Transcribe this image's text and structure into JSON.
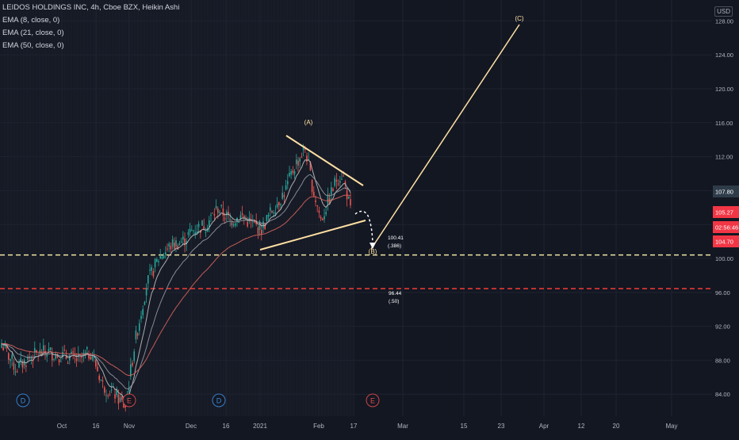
{
  "header": {
    "title": "LEIDOS HOLDINGS INC, 4h, Cboe BZX, Heikin Ashi"
  },
  "indicators": [
    {
      "label": "EMA (8, close, 0)",
      "color": "#c8c8c8"
    },
    {
      "label": "EMA (21, close, 0)",
      "color": "#9a9fa8"
    },
    {
      "label": "EMA (50, close, 0)",
      "color": "#e0675f"
    }
  ],
  "currency": "USD",
  "price_axis": {
    "ticks": [
      "128.00",
      "124.00",
      "120.00",
      "116.00",
      "112.00",
      "108.00",
      "104.00",
      "100.00",
      "96.00",
      "92.00",
      "88.00",
      "84.00"
    ]
  },
  "time_axis": {
    "ticks": [
      "Oct",
      "16",
      "Nov",
      "Dec",
      "16",
      "2021",
      "Feb",
      "17",
      "Mar",
      "15",
      "23",
      "Apr",
      "12",
      "20",
      "May"
    ]
  },
  "price_tags": [
    {
      "value": "107.80",
      "bg": "#2e3c4a",
      "fg": "#ffffff"
    },
    {
      "value": "105.27",
      "bg": "#f23645",
      "fg": "#ffffff"
    },
    {
      "value": "02:56:46",
      "bg": "#f23645",
      "fg": "#ffffff"
    },
    {
      "value": "104.70",
      "bg": "#f23645",
      "fg": "#ffffff"
    }
  ],
  "wave_labels": {
    "A": "(A)",
    "B": "(B)",
    "C": "(C)"
  },
  "fib_levels": [
    {
      "price": "100.41",
      "ratio": "(.386)",
      "color": "#f0e6a6"
    },
    {
      "price": "96.44",
      "ratio": "(.50)",
      "color": "#e53935"
    }
  ],
  "event_markers": [
    {
      "letter": "D",
      "color": "#3b8ad9"
    },
    {
      "letter": "E",
      "color": "#e04b4b"
    },
    {
      "letter": "D",
      "color": "#3b8ad9"
    },
    {
      "letter": "E",
      "color": "#e04b4b"
    }
  ],
  "colors": {
    "background": "#131722",
    "up": "#26a69a",
    "down": "#ef5350",
    "trendline": "#ffe0a3"
  },
  "chart_data": {
    "type": "candlestick",
    "symbol": "LEIDOS HOLDINGS INC",
    "interval": "4h",
    "exchange": "Cboe BZX",
    "style": "Heikin Ashi",
    "ylim": [
      82.0,
      131.0
    ],
    "price_series_approx": [
      {
        "x": "Sep late",
        "close": 90.0
      },
      {
        "x": "Oct",
        "close": 88.0
      },
      {
        "x": "Oct 16",
        "close": 89.0
      },
      {
        "x": "Nov",
        "close": 83.0
      },
      {
        "x": "Nov mid",
        "close": 99.0
      },
      {
        "x": "Dec",
        "close": 102.0
      },
      {
        "x": "Dec 16",
        "close": 106.0
      },
      {
        "x": "2021",
        "close": 103.5
      },
      {
        "x": "Jan late",
        "close": 113.0
      },
      {
        "x": "Feb",
        "close": 105.0
      },
      {
        "x": "Feb mid",
        "close": 110.0
      },
      {
        "x": "Feb 17",
        "close": 105.0
      }
    ],
    "horizontal_levels": [
      {
        "price": 100.41,
        "label": "(.386)",
        "style": "dashed",
        "color": "#f0e6a6"
      },
      {
        "price": 96.44,
        "label": "(.50)",
        "style": "dashed",
        "color": "#e53935"
      }
    ],
    "annotations": [
      "(A)",
      "(B)",
      "(C)"
    ]
  }
}
